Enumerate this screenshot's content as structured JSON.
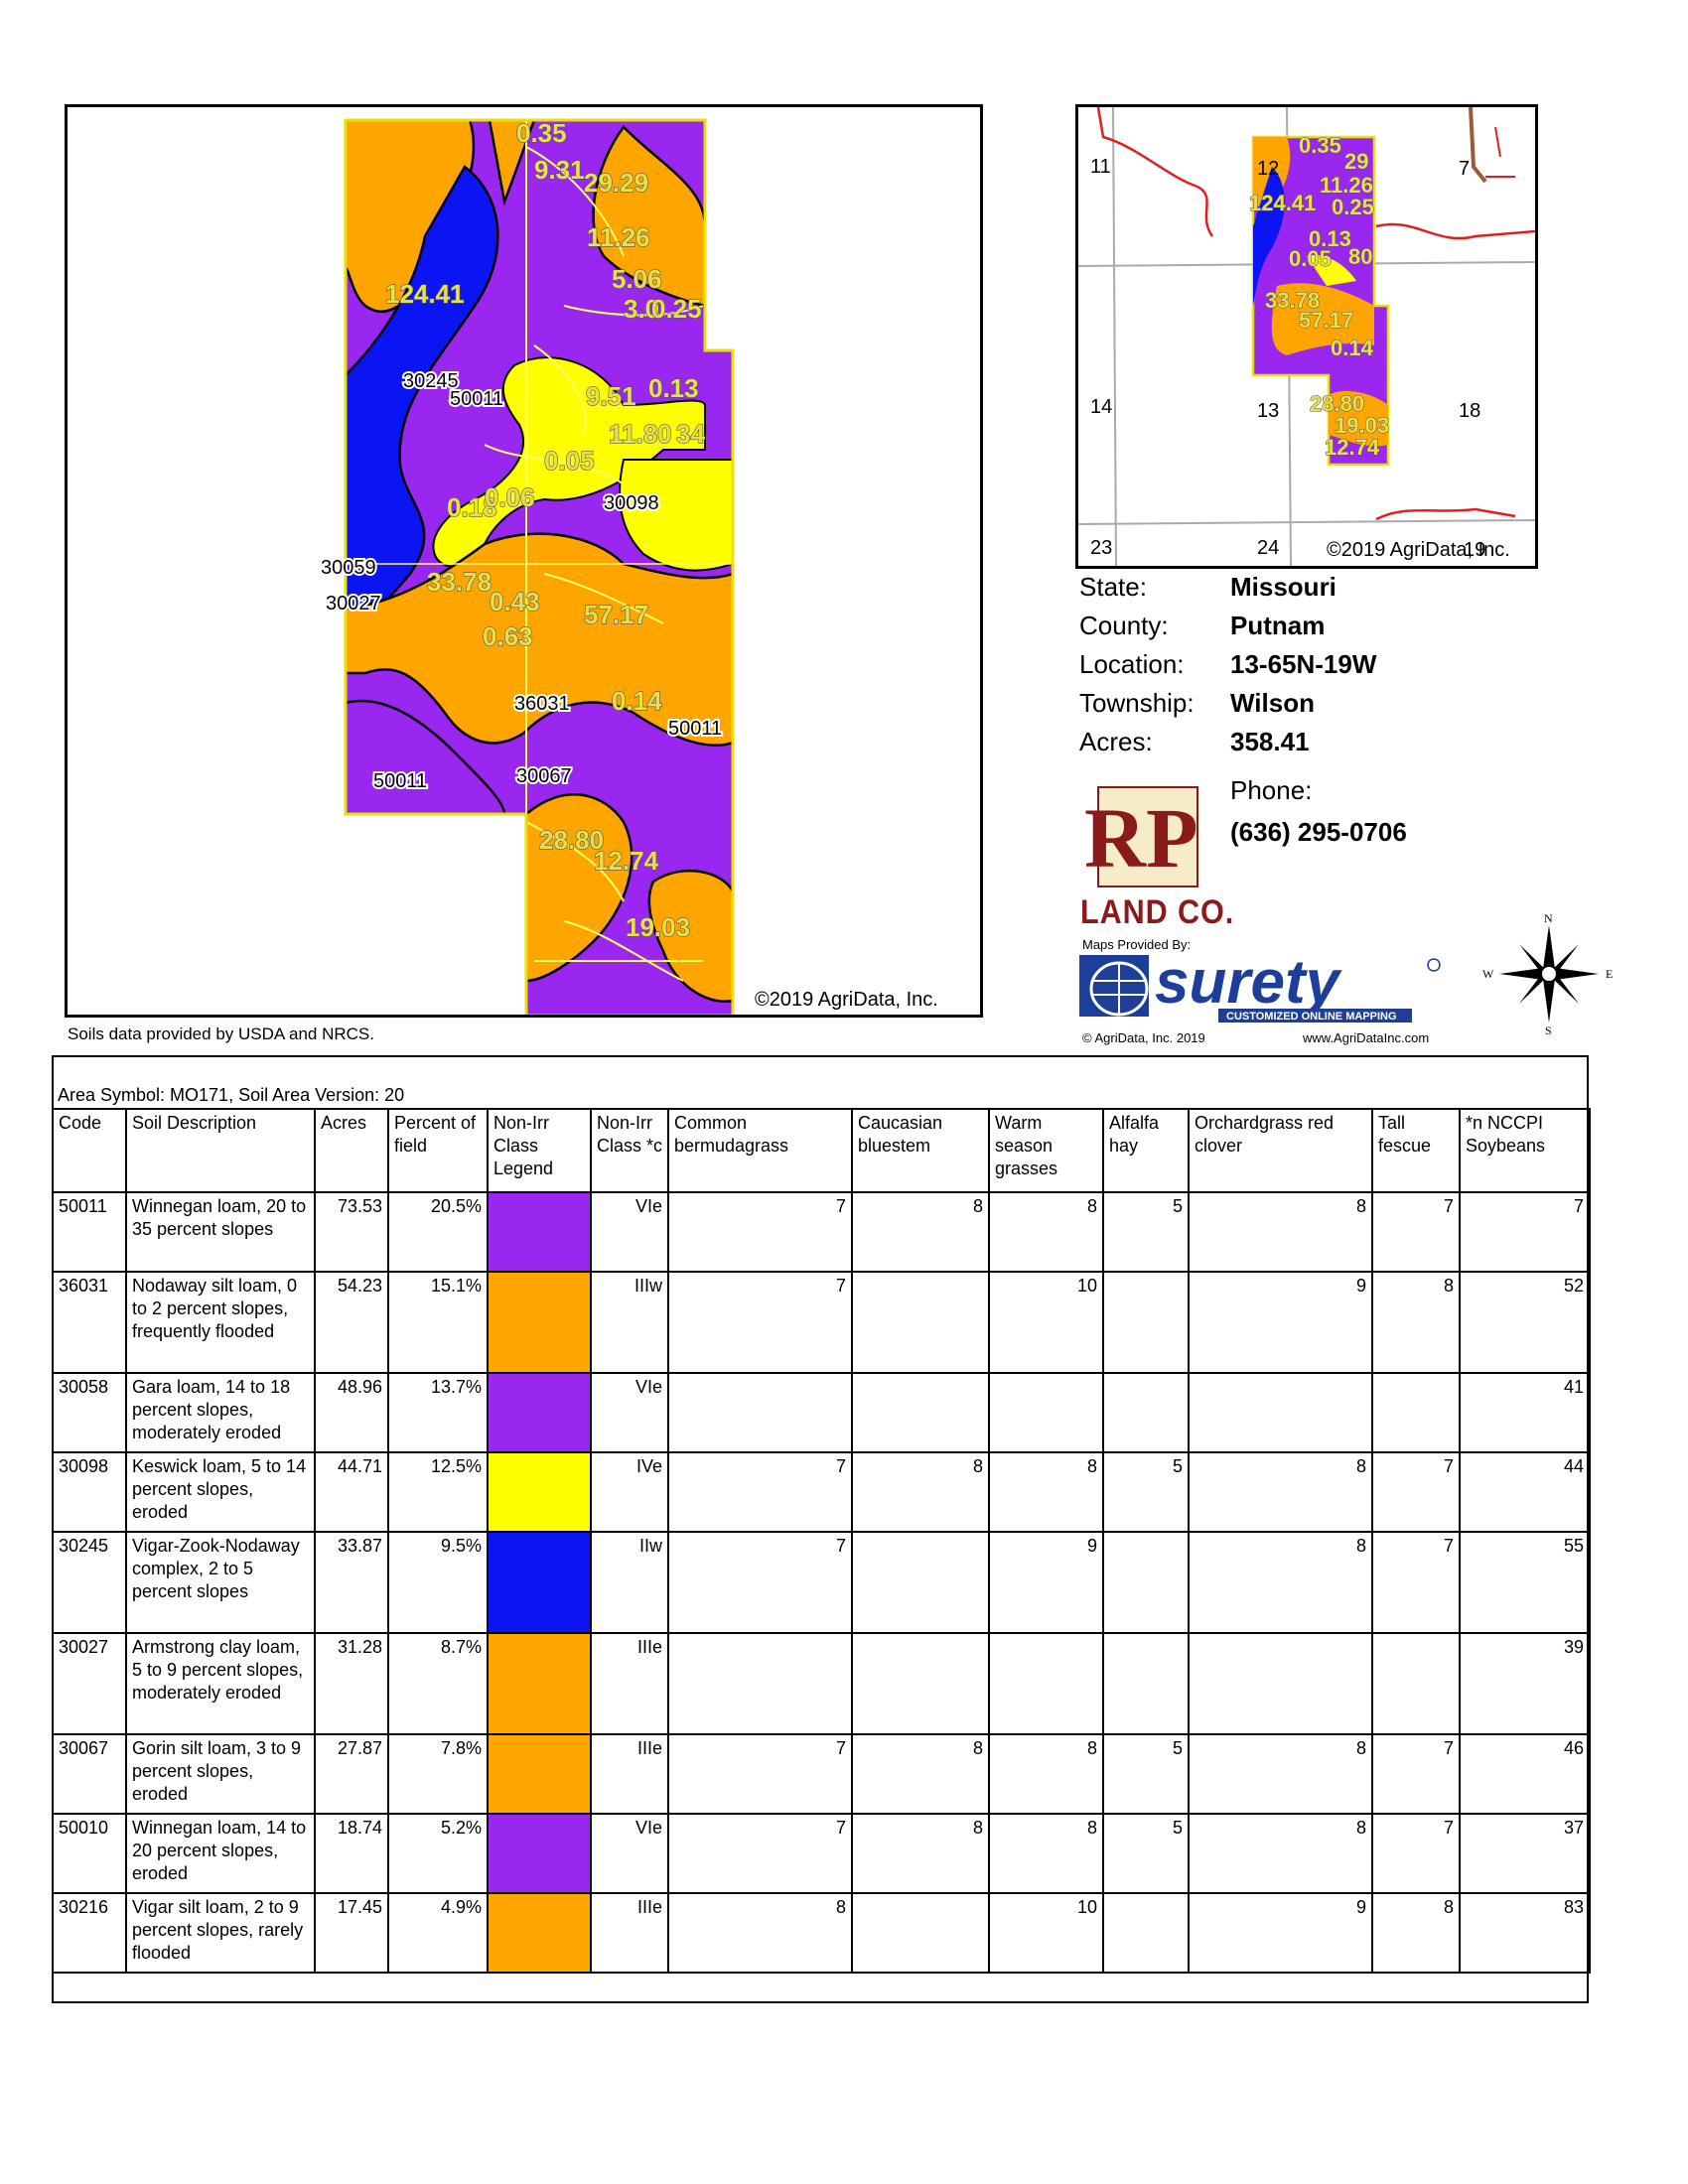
{
  "colors": {
    "purple": "#9a27f0",
    "orange": "#ffa500",
    "yellow": "#ffff00",
    "blue": "#0b14f2",
    "label_fill": "#e7e04a",
    "road_red": "#e02020",
    "land_co_red": "#8b1a1a"
  },
  "main_map": {
    "labels": [
      "0.35",
      "9.31",
      "29.29",
      "11.26",
      "124.41",
      "5.06",
      "3.0",
      "0.25",
      "30245",
      "50011",
      "9.51",
      "0.13",
      "11.80",
      "34",
      "0.05",
      "0.18",
      "0.06",
      "30098",
      "30059",
      "33.78",
      "0.43",
      "57.17",
      "30027",
      "0.63",
      "36031",
      "0.14",
      "50011",
      "50011",
      "30067",
      "28.80",
      "12.74",
      "19.03"
    ],
    "copyright": "©2019 AgriData, Inc."
  },
  "soils_source": "Soils data provided by USDA and NRCS.",
  "locator_map": {
    "sections": [
      "11",
      "12",
      "7",
      "14",
      "13",
      "18",
      "23",
      "24",
      "19"
    ],
    "labels": [
      "0.35",
      "29",
      "124.41",
      "11.26",
      "0.25",
      "0.13",
      "80",
      "0.05",
      "33.78",
      "57.17",
      "0.14",
      "28.80",
      "19.03",
      "12.74"
    ],
    "copyright": "©2019 AgriData, Inc."
  },
  "info": [
    {
      "key": "State:",
      "value": "Missouri"
    },
    {
      "key": "County:",
      "value": "Putnam"
    },
    {
      "key": "Location:",
      "value": "13-65N-19W"
    },
    {
      "key": "Township:",
      "value": "Wilson"
    },
    {
      "key": "Acres:",
      "value": "358.41"
    }
  ],
  "contact": {
    "phone_label": "Phone:",
    "phone": "(636) 295-0706"
  },
  "branding": {
    "rp_logo_text": "RP",
    "land_co": "LAND CO.",
    "maps_provided_by": "Maps Provided By:",
    "surety": "surety",
    "surety_tagline": "CUSTOMIZED ONLINE MAPPING",
    "agri_copyright": "© AgriData, Inc. 2019",
    "agri_site": "www.AgriDataInc.com",
    "compass": {
      "n": "N",
      "s": "S",
      "e": "E",
      "w": "W"
    }
  },
  "table": {
    "area_symbol": "Area Symbol: MO171, Soil Area Version: 20",
    "headers": [
      "Code",
      "Soil Description",
      "Acres",
      "Percent of field",
      "Non-Irr Class Legend",
      "Non-Irr Class *c",
      "Common bermudagrass",
      "Caucasian bluestem",
      "Warm season grasses",
      "Alfalfa hay",
      "Orchardgrass red clover",
      "Tall fescue",
      "*n NCCPI Soybeans"
    ],
    "rows": [
      {
        "code": "50011",
        "desc": "Winnegan loam, 20 to 35 percent slopes",
        "acres": "73.53",
        "pct": "20.5%",
        "legend": "#9a27f0",
        "cls": "VIe",
        "berm": "7",
        "cauc": "8",
        "warm": "8",
        "alf": "5",
        "orch": "8",
        "fescue": "7",
        "nccpi": "7"
      },
      {
        "code": "36031",
        "desc": "Nodaway silt loam, 0 to 2 percent slopes, frequently flooded",
        "acres": "54.23",
        "pct": "15.1%",
        "legend": "#ffa500",
        "cls": "IIIw",
        "berm": "7",
        "cauc": "",
        "warm": "10",
        "alf": "",
        "orch": "9",
        "fescue": "8",
        "nccpi": "52"
      },
      {
        "code": "30058",
        "desc": "Gara loam, 14 to 18 percent slopes, moderately eroded",
        "acres": "48.96",
        "pct": "13.7%",
        "legend": "#9a27f0",
        "cls": "VIe",
        "berm": "",
        "cauc": "",
        "warm": "",
        "alf": "",
        "orch": "",
        "fescue": "",
        "nccpi": "41"
      },
      {
        "code": "30098",
        "desc": "Keswick loam, 5 to 14 percent slopes, eroded",
        "acres": "44.71",
        "pct": "12.5%",
        "legend": "#ffff00",
        "cls": "IVe",
        "berm": "7",
        "cauc": "8",
        "warm": "8",
        "alf": "5",
        "orch": "8",
        "fescue": "7",
        "nccpi": "44"
      },
      {
        "code": "30245",
        "desc": "Vigar-Zook-Nodaway complex, 2 to 5 percent slopes",
        "acres": "33.87",
        "pct": "9.5%",
        "legend": "#0b14f2",
        "cls": "IIw",
        "berm": "7",
        "cauc": "",
        "warm": "9",
        "alf": "",
        "orch": "8",
        "fescue": "7",
        "nccpi": "55"
      },
      {
        "code": "30027",
        "desc": "Armstrong clay loam, 5 to 9 percent slopes, moderately eroded",
        "acres": "31.28",
        "pct": "8.7%",
        "legend": "#ffa500",
        "cls": "IIIe",
        "berm": "",
        "cauc": "",
        "warm": "",
        "alf": "",
        "orch": "",
        "fescue": "",
        "nccpi": "39"
      },
      {
        "code": "30067",
        "desc": "Gorin silt loam, 3 to 9 percent slopes, eroded",
        "acres": "27.87",
        "pct": "7.8%",
        "legend": "#ffa500",
        "cls": "IIIe",
        "berm": "7",
        "cauc": "8",
        "warm": "8",
        "alf": "5",
        "orch": "8",
        "fescue": "7",
        "nccpi": "46"
      },
      {
        "code": "50010",
        "desc": "Winnegan loam, 14 to 20 percent slopes, eroded",
        "acres": "18.74",
        "pct": "5.2%",
        "legend": "#9a27f0",
        "cls": "VIe",
        "berm": "7",
        "cauc": "8",
        "warm": "8",
        "alf": "5",
        "orch": "8",
        "fescue": "7",
        "nccpi": "37"
      },
      {
        "code": "30216",
        "desc": "Vigar silt loam, 2 to 9 percent slopes, rarely flooded",
        "acres": "17.45",
        "pct": "4.9%",
        "legend": "#ffa500",
        "cls": "IIIe",
        "berm": "8",
        "cauc": "",
        "warm": "10",
        "alf": "",
        "orch": "9",
        "fescue": "8",
        "nccpi": "83"
      }
    ]
  }
}
